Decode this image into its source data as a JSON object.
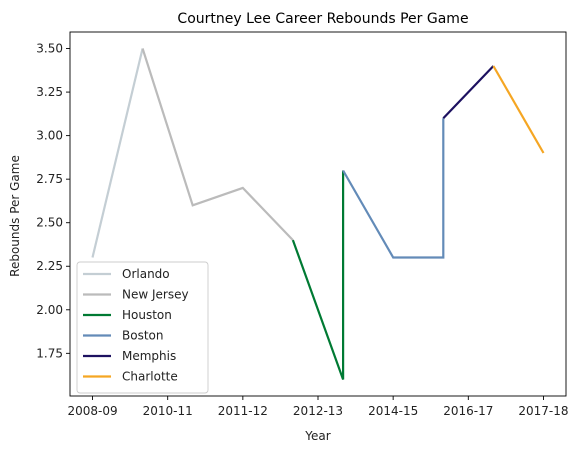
{
  "chart_data": {
    "type": "line",
    "title": "Courtney Lee Career Rebounds Per Game",
    "xlabel": "Year",
    "ylabel": "Rebounds Per Game",
    "x_tick_labels": [
      "2008-09",
      "2010-11",
      "2011-12",
      "2012-13",
      "2014-15",
      "2016-17",
      "2017-18"
    ],
    "x_tick_positions": [
      0,
      1.5,
      3,
      4.5,
      6,
      7.5,
      9
    ],
    "xlim": [
      -0.45,
      9.45
    ],
    "y_ticks": [
      "1.75",
      "2.00",
      "2.25",
      "2.50",
      "2.75",
      "3.00",
      "3.25",
      "3.50"
    ],
    "y_tick_values": [
      1.75,
      2.0,
      2.25,
      2.5,
      2.75,
      3.0,
      3.25,
      3.5
    ],
    "ylim": [
      1.505,
      3.595
    ],
    "grid": false,
    "legend_position": "lower-left",
    "series": [
      {
        "name": "Orlando",
        "color": "#c4ced4",
        "x": [
          0,
          1
        ],
        "y": [
          2.3,
          3.5
        ]
      },
      {
        "name": "New Jersey",
        "color": "#bbbbbb",
        "x": [
          1,
          2,
          3,
          4
        ],
        "y": [
          3.5,
          2.6,
          2.7,
          2.4
        ]
      },
      {
        "name": "Houston",
        "color": "#007a33",
        "x": [
          4,
          5,
          5
        ],
        "y": [
          2.4,
          1.6,
          2.8
        ]
      },
      {
        "name": "Boston",
        "color": "#638bb8",
        "x": [
          5,
          6,
          7,
          7
        ],
        "y": [
          2.8,
          2.3,
          2.3,
          3.1
        ]
      },
      {
        "name": "Memphis",
        "color": "#1d1160",
        "x": [
          7,
          8
        ],
        "y": [
          3.1,
          3.4
        ]
      },
      {
        "name": "Charlotte",
        "color": "#f5a623",
        "x": [
          8,
          9
        ],
        "y": [
          3.4,
          2.9
        ]
      }
    ]
  }
}
